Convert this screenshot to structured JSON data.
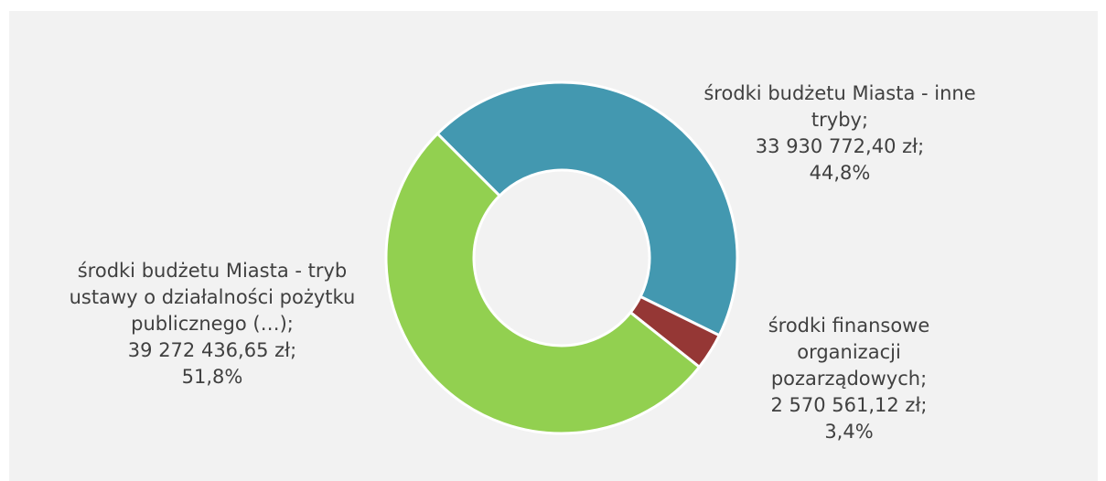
{
  "chart_data": {
    "type": "donut",
    "categories": [
      "środki budżetu Miasta - inne tryby;",
      "środki finansowe organizacji pozarządowych;",
      "środki budżetu Miasta - tryb ustawy o działalności pożytku publicznego (…);"
    ],
    "values": [
      33930772.4,
      2570561.12,
      39272436.65
    ],
    "value_labels": [
      "33 930 772,40 zł;",
      "2 570 561,12 zł;",
      "39 272 436,65 zł;"
    ],
    "percent_labels": [
      "44,8%",
      "3,4%",
      "51,8%"
    ],
    "colors": [
      "#4398b0",
      "#953735",
      "#92d050"
    ]
  }
}
